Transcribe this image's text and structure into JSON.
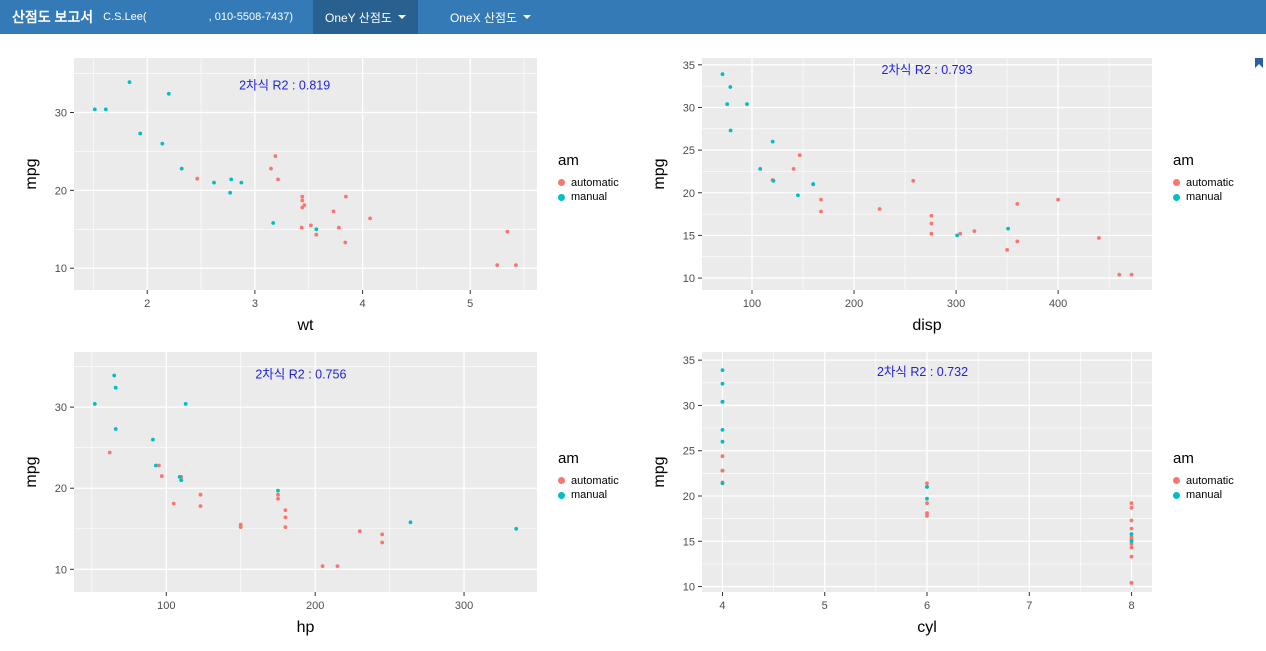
{
  "navbar": {
    "title": "산점도 보고서",
    "user": "C.S.Lee(",
    "phone": ", 010-5508-7437)",
    "menus": [
      {
        "label": "OneY 산점도",
        "active": true
      },
      {
        "label": "OneX 산점도",
        "active": false
      }
    ]
  },
  "legend": {
    "title": "am",
    "items": [
      {
        "label": "automatic",
        "color_key": "automatic"
      },
      {
        "label": "manual",
        "color_key": "manual"
      }
    ]
  },
  "colors": {
    "navbar_bg": "#337AB7",
    "navbar_active_bg": "#286090",
    "navbar_text": "#FFFFFF",
    "panel_bg": "#EBEBEB",
    "grid_line": "#FFFFFF",
    "tick_text": "#4D4D4D",
    "axis_text": "#000000",
    "automatic": "#F8766D",
    "manual": "#00BFC4",
    "quad_line": "#FF0000",
    "loess_line": "#3366FF",
    "ribbon": "#808080",
    "annotation": "#2222DD",
    "corner_icon": "#2B5FA3"
  },
  "chart_data": {
    "type": "scatter-grid",
    "ylabel": "mpg",
    "records": [
      {
        "mpg": 21.0,
        "cyl": 6,
        "disp": 160.0,
        "hp": 110,
        "wt": 2.62,
        "am": "manual"
      },
      {
        "mpg": 21.0,
        "cyl": 6,
        "disp": 160.0,
        "hp": 110,
        "wt": 2.875,
        "am": "manual"
      },
      {
        "mpg": 22.8,
        "cyl": 4,
        "disp": 108.0,
        "hp": 93,
        "wt": 2.32,
        "am": "manual"
      },
      {
        "mpg": 21.4,
        "cyl": 6,
        "disp": 258.0,
        "hp": 110,
        "wt": 3.215,
        "am": "automatic"
      },
      {
        "mpg": 18.7,
        "cyl": 8,
        "disp": 360.0,
        "hp": 175,
        "wt": 3.44,
        "am": "automatic"
      },
      {
        "mpg": 18.1,
        "cyl": 6,
        "disp": 225.0,
        "hp": 105,
        "wt": 3.46,
        "am": "automatic"
      },
      {
        "mpg": 14.3,
        "cyl": 8,
        "disp": 360.0,
        "hp": 245,
        "wt": 3.57,
        "am": "automatic"
      },
      {
        "mpg": 24.4,
        "cyl": 4,
        "disp": 146.7,
        "hp": 62,
        "wt": 3.19,
        "am": "automatic"
      },
      {
        "mpg": 22.8,
        "cyl": 4,
        "disp": 140.8,
        "hp": 95,
        "wt": 3.15,
        "am": "automatic"
      },
      {
        "mpg": 19.2,
        "cyl": 6,
        "disp": 167.6,
        "hp": 123,
        "wt": 3.44,
        "am": "automatic"
      },
      {
        "mpg": 17.8,
        "cyl": 6,
        "disp": 167.6,
        "hp": 123,
        "wt": 3.44,
        "am": "automatic"
      },
      {
        "mpg": 16.4,
        "cyl": 8,
        "disp": 275.8,
        "hp": 180,
        "wt": 4.07,
        "am": "automatic"
      },
      {
        "mpg": 17.3,
        "cyl": 8,
        "disp": 275.8,
        "hp": 180,
        "wt": 3.73,
        "am": "automatic"
      },
      {
        "mpg": 15.2,
        "cyl": 8,
        "disp": 275.8,
        "hp": 180,
        "wt": 3.78,
        "am": "automatic"
      },
      {
        "mpg": 10.4,
        "cyl": 8,
        "disp": 472.0,
        "hp": 205,
        "wt": 5.25,
        "am": "automatic"
      },
      {
        "mpg": 10.4,
        "cyl": 8,
        "disp": 460.0,
        "hp": 215,
        "wt": 5.424,
        "am": "automatic"
      },
      {
        "mpg": 14.7,
        "cyl": 8,
        "disp": 440.0,
        "hp": 230,
        "wt": 5.345,
        "am": "automatic"
      },
      {
        "mpg": 32.4,
        "cyl": 4,
        "disp": 78.7,
        "hp": 66,
        "wt": 2.2,
        "am": "manual"
      },
      {
        "mpg": 30.4,
        "cyl": 4,
        "disp": 75.7,
        "hp": 52,
        "wt": 1.615,
        "am": "manual"
      },
      {
        "mpg": 33.9,
        "cyl": 4,
        "disp": 71.1,
        "hp": 65,
        "wt": 1.835,
        "am": "manual"
      },
      {
        "mpg": 21.5,
        "cyl": 4,
        "disp": 120.1,
        "hp": 97,
        "wt": 2.465,
        "am": "automatic"
      },
      {
        "mpg": 15.5,
        "cyl": 8,
        "disp": 318.0,
        "hp": 150,
        "wt": 3.52,
        "am": "automatic"
      },
      {
        "mpg": 15.2,
        "cyl": 8,
        "disp": 304.0,
        "hp": 150,
        "wt": 3.435,
        "am": "automatic"
      },
      {
        "mpg": 13.3,
        "cyl": 8,
        "disp": 350.0,
        "hp": 245,
        "wt": 3.84,
        "am": "automatic"
      },
      {
        "mpg": 19.2,
        "cyl": 8,
        "disp": 400.0,
        "hp": 175,
        "wt": 3.845,
        "am": "automatic"
      },
      {
        "mpg": 27.3,
        "cyl": 4,
        "disp": 79.0,
        "hp": 66,
        "wt": 1.935,
        "am": "manual"
      },
      {
        "mpg": 26.0,
        "cyl": 4,
        "disp": 120.3,
        "hp": 91,
        "wt": 2.14,
        "am": "manual"
      },
      {
        "mpg": 30.4,
        "cyl": 4,
        "disp": 95.1,
        "hp": 113,
        "wt": 1.513,
        "am": "manual"
      },
      {
        "mpg": 15.8,
        "cyl": 8,
        "disp": 351.0,
        "hp": 264,
        "wt": 3.17,
        "am": "manual"
      },
      {
        "mpg": 19.7,
        "cyl": 6,
        "disp": 145.0,
        "hp": 175,
        "wt": 2.77,
        "am": "manual"
      },
      {
        "mpg": 15.0,
        "cyl": 8,
        "disp": 301.0,
        "hp": 335,
        "wt": 3.57,
        "am": "manual"
      },
      {
        "mpg": 21.4,
        "cyl": 4,
        "disp": 121.0,
        "hp": 109,
        "wt": 2.78,
        "am": "manual"
      }
    ],
    "charts": [
      {
        "type": "scatter",
        "x_field": "wt",
        "xlabel": "wt",
        "ylabel": "mpg",
        "annotation": "2차식 R2 : 0.819",
        "r2": 0.819,
        "xlim": [
          1.32,
          5.62
        ],
        "ylim": [
          7.2,
          37.0
        ],
        "xticks": [
          2,
          3,
          4,
          5
        ],
        "xminor": [
          1.5,
          2.5,
          3.5,
          4.5,
          5.5
        ],
        "yticks": [
          10,
          20,
          30
        ],
        "yminor": [
          15,
          25,
          35
        ],
        "ann": [
          0.455,
          0.135
        ]
      },
      {
        "type": "scatter",
        "x_field": "disp",
        "xlabel": "disp",
        "ylabel": "mpg",
        "annotation": "2차식 R2 : 0.793",
        "r2": 0.793,
        "xlim": [
          51,
          492
        ],
        "ylim": [
          8.6,
          35.8
        ],
        "xticks": [
          100,
          200,
          300,
          400
        ],
        "xminor": [
          150,
          250,
          350,
          450
        ],
        "yticks": [
          10,
          15,
          20,
          25,
          30,
          35
        ],
        "yminor": [
          12.5,
          17.5,
          22.5,
          27.5,
          32.5
        ],
        "ann": [
          0.5,
          0.07
        ]
      },
      {
        "type": "scatter",
        "x_field": "hp",
        "xlabel": "hp",
        "ylabel": "mpg",
        "annotation": "2차식 R2 : 0.756",
        "r2": 0.756,
        "xlim": [
          38,
          349
        ],
        "ylim": [
          7.2,
          36.8
        ],
        "xticks": [
          100,
          200,
          300
        ],
        "xminor": [
          50,
          150,
          250
        ],
        "yticks": [
          10,
          20,
          30
        ],
        "yminor": [
          15,
          25,
          35
        ],
        "ann": [
          0.49,
          0.11
        ]
      },
      {
        "type": "scatter",
        "x_field": "cyl",
        "xlabel": "cyl",
        "ylabel": "mpg",
        "annotation": "2차식 R2 : 0.732",
        "r2": 0.732,
        "xlim": [
          3.8,
          8.2
        ],
        "ylim": [
          9.4,
          35.9
        ],
        "xticks": [
          4,
          5,
          6,
          7,
          8
        ],
        "xminor": [
          4.5,
          5.5,
          6.5,
          7.5
        ],
        "yticks": [
          10,
          15,
          20,
          25,
          30,
          35
        ],
        "yminor": [
          12.5,
          17.5,
          22.5,
          27.5,
          32.5
        ],
        "ann": [
          0.49,
          0.1
        ]
      }
    ]
  }
}
